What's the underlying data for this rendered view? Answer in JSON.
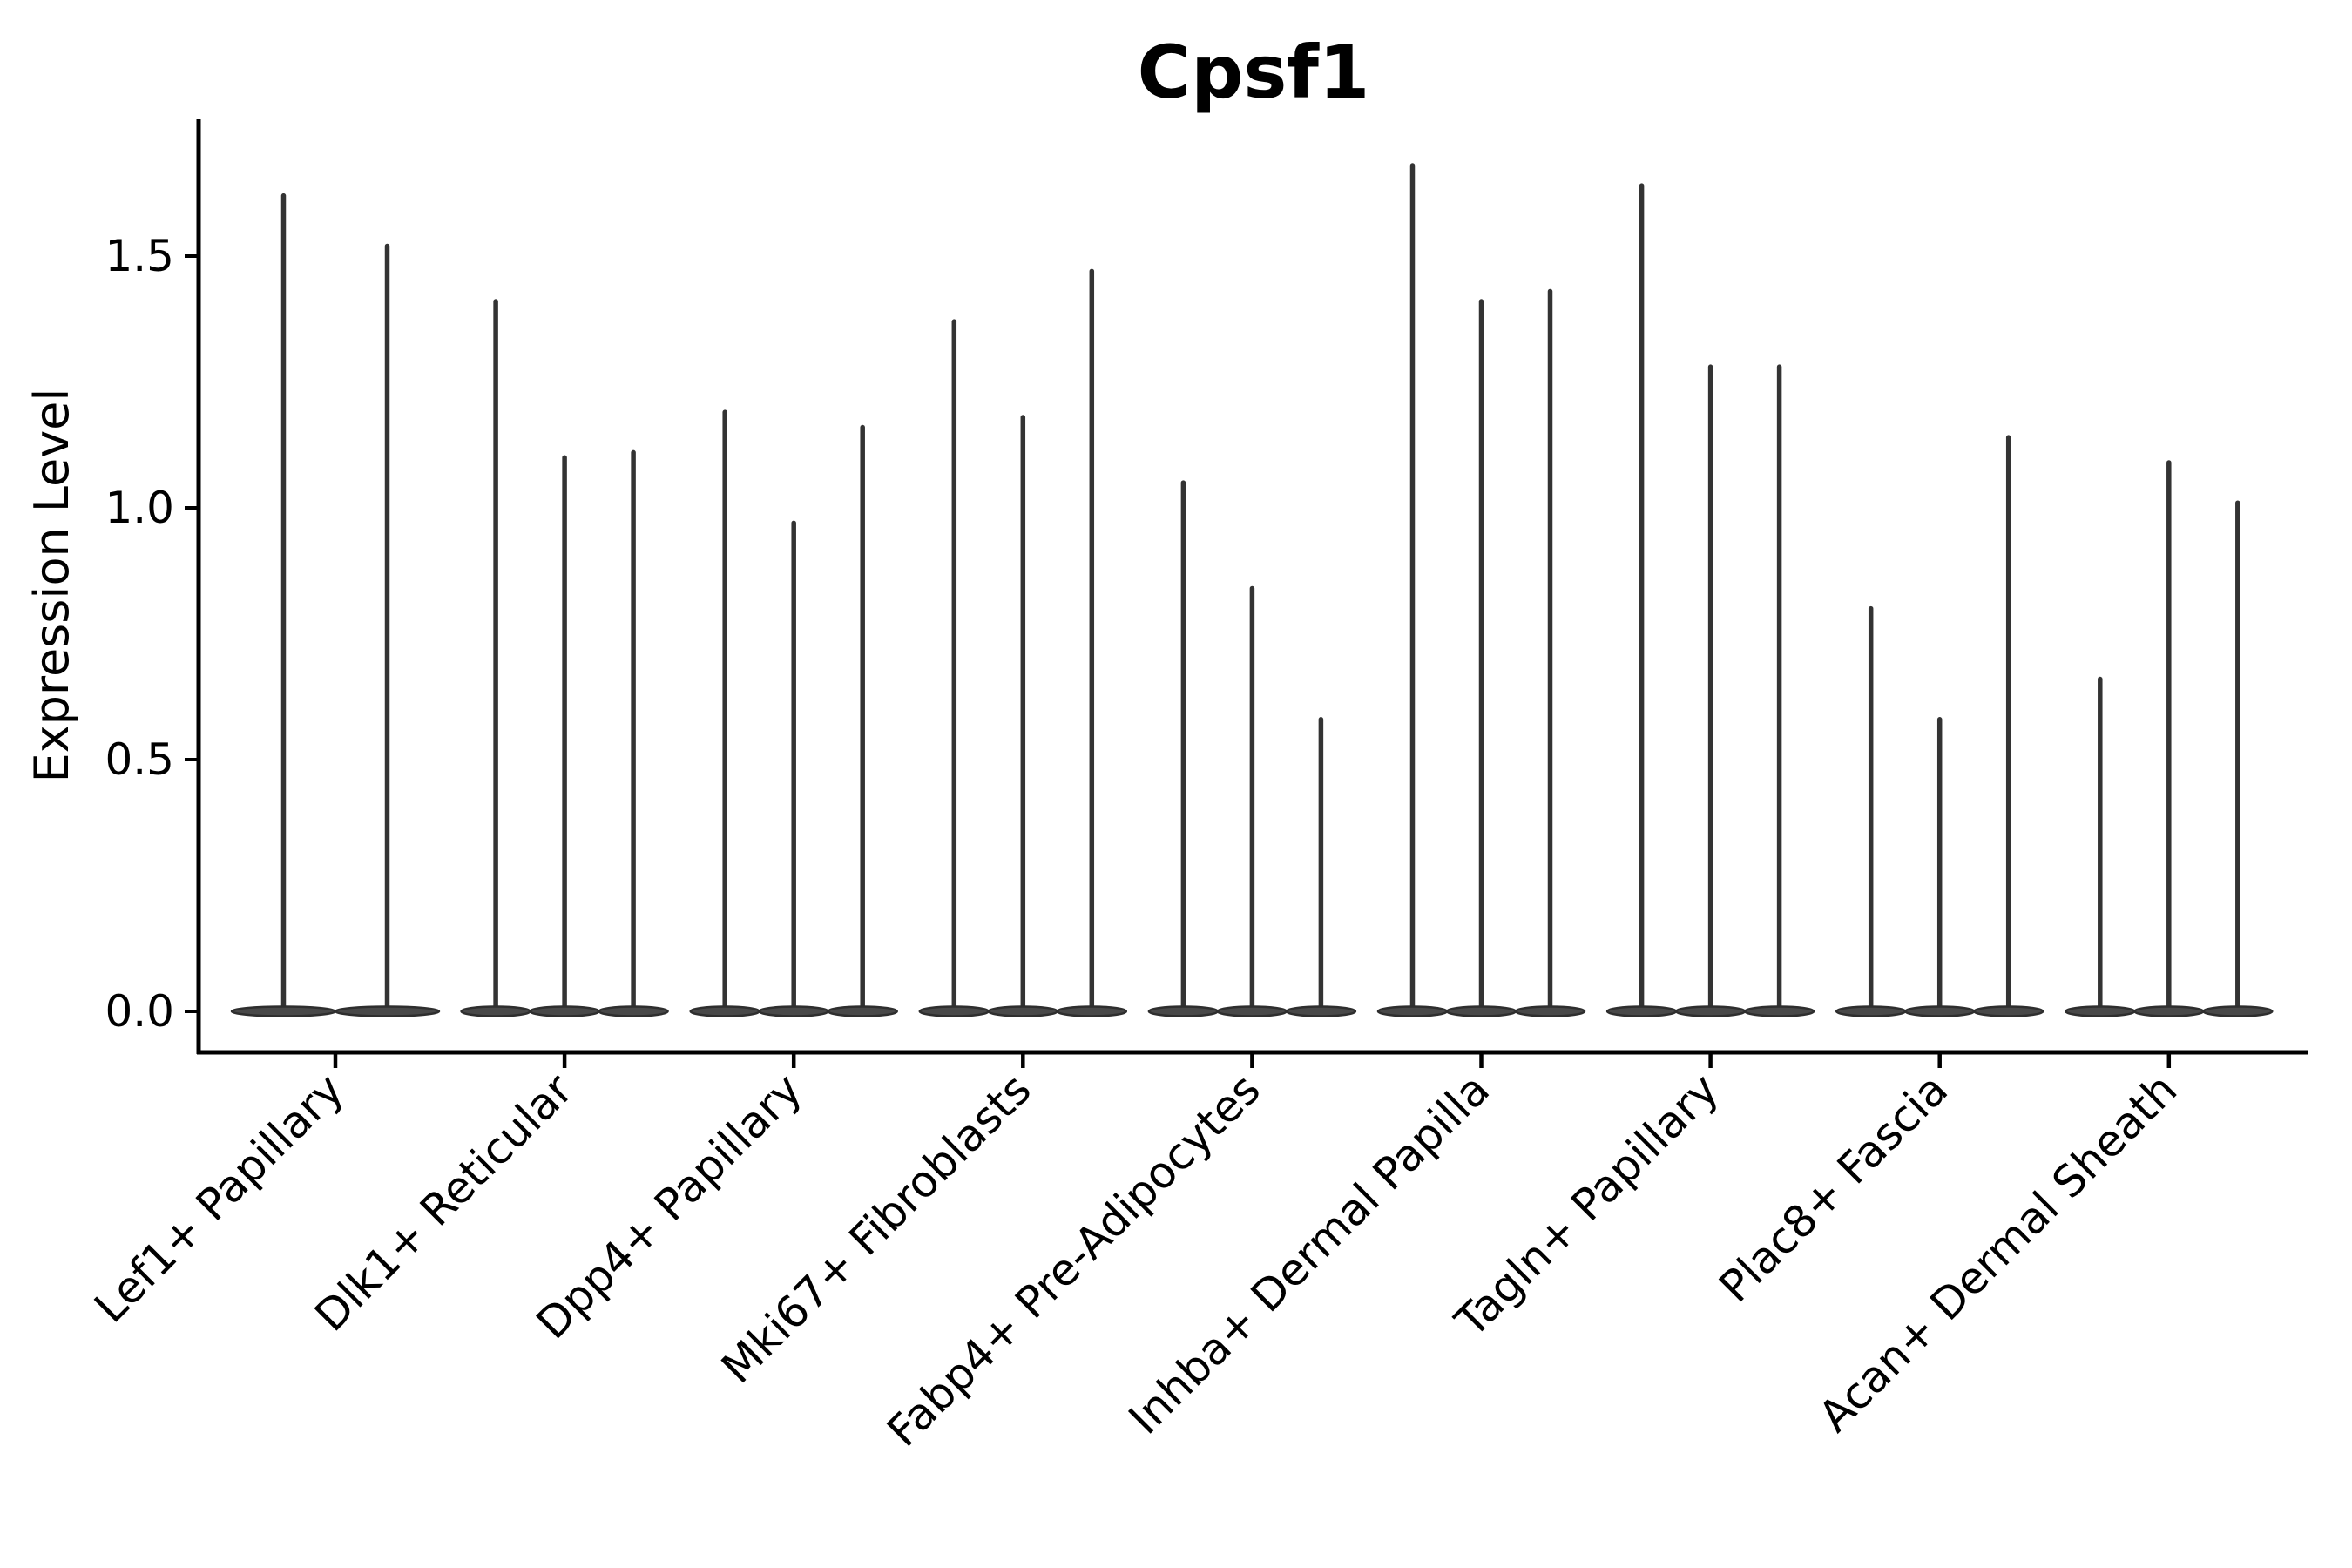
{
  "figure": {
    "title": "Cpsf1"
  },
  "axes": {
    "ylabel": "Expression Level",
    "ytick_labels": [
      "0.0",
      "0.5",
      "1.0",
      "1.5"
    ]
  },
  "colors": {
    "background": "#ffffff",
    "axis": "#000000",
    "text": "#000000",
    "violin_stroke": "#2e2e2e",
    "violin_fill": "#484848",
    "spike": "#333333"
  },
  "chart_data": {
    "type": "violin",
    "title": "Cpsf1",
    "xlabel": "",
    "ylabel": "Expression Level",
    "grid": false,
    "legend_position": "none",
    "yticks": [
      0.0,
      0.5,
      1.0,
      1.5
    ],
    "ylim": [
      -0.08,
      1.75
    ],
    "mass_concentrated_at_zero": true,
    "categories": [
      "Lef1+ Papillary",
      "Dlk1+ Reticular",
      "Dpp4+ Papillary",
      "Mki67+ Fibroblasts",
      "Fabp4+ Pre-Adipocytes",
      "Inhba+ Dermal Papilla",
      "Tagln+ Papillary",
      "Plac8+ Fascia",
      "Acan+ Dermal Sheath"
    ],
    "series": [
      {
        "category": "Lef1+ Papillary",
        "violin_max": [
          1.62,
          1.52
        ]
      },
      {
        "category": "Dlk1+ Reticular",
        "violin_max": [
          1.41,
          1.1,
          1.11
        ]
      },
      {
        "category": "Dpp4+ Papillary",
        "violin_max": [
          1.19,
          0.97,
          1.16
        ]
      },
      {
        "category": "Mki67+ Fibroblasts",
        "violin_max": [
          1.37,
          1.18,
          1.47
        ]
      },
      {
        "category": "Fabp4+ Pre-Adipocytes",
        "violin_max": [
          1.05,
          0.84,
          0.58
        ]
      },
      {
        "category": "Inhba+ Dermal Papilla",
        "violin_max": [
          1.68,
          1.41,
          1.43
        ]
      },
      {
        "category": "Tagln+ Papillary",
        "violin_max": [
          1.64,
          1.28,
          1.28
        ]
      },
      {
        "category": "Plac8+ Fascia",
        "violin_max": [
          0.8,
          0.58,
          1.14
        ]
      },
      {
        "category": "Acan+ Dermal Sheath",
        "violin_max": [
          0.66,
          1.09,
          1.01
        ]
      }
    ]
  }
}
